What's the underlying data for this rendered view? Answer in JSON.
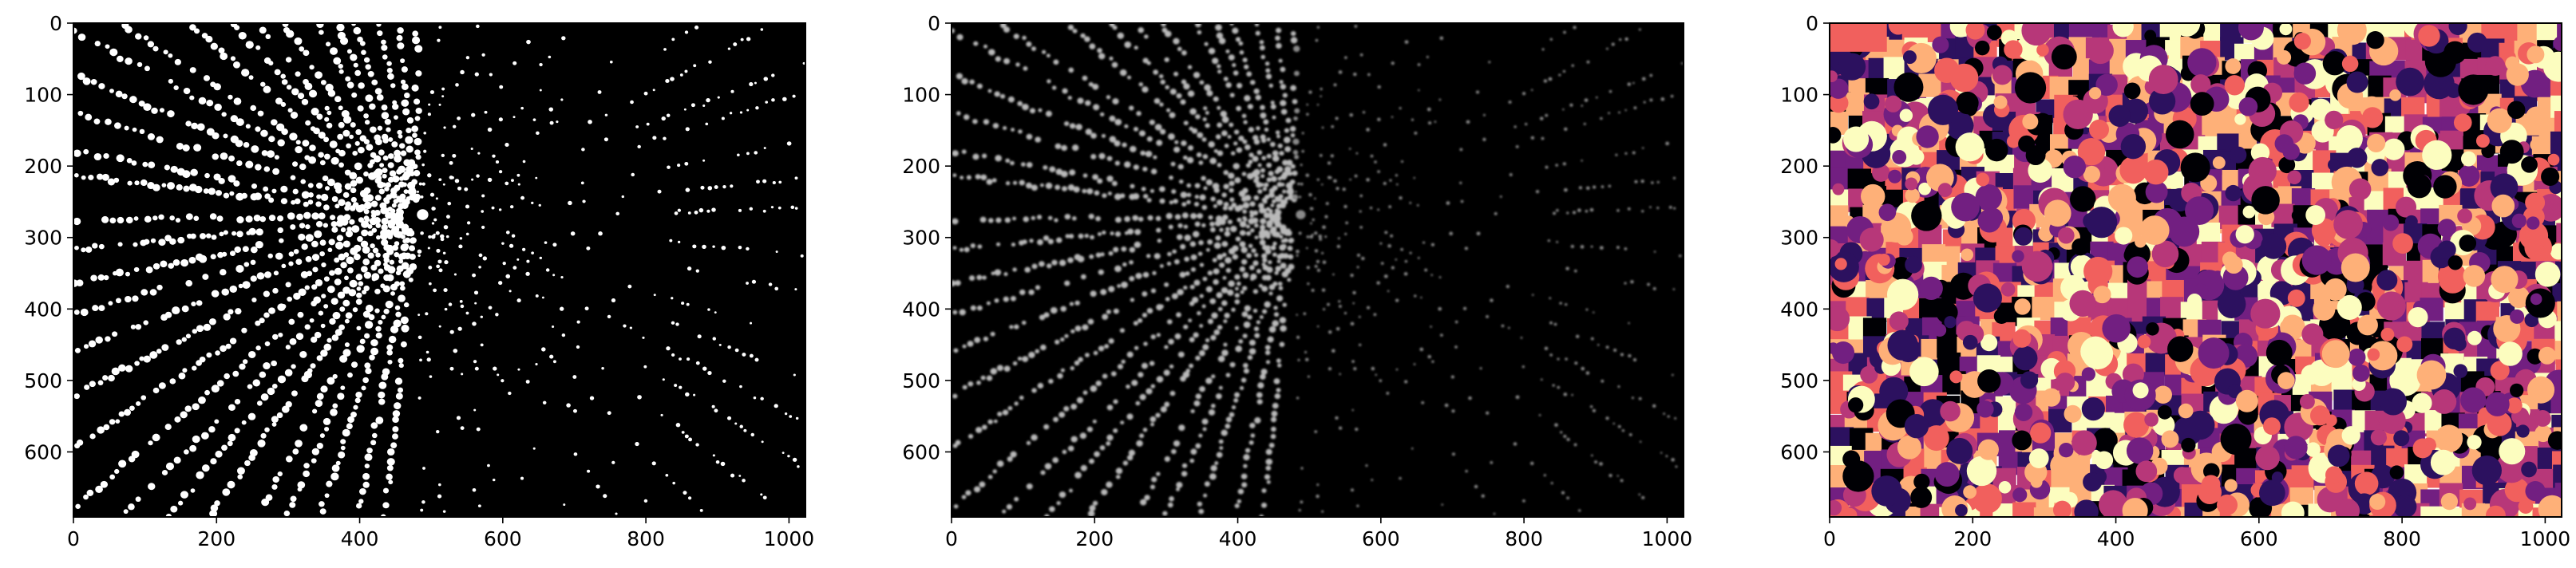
{
  "chart_data": [
    {
      "type": "heatmap",
      "image_kind": "binary-mask",
      "description_colormap": "gray",
      "xlim": [
        0,
        1023
      ],
      "ylim": [
        691,
        0
      ],
      "x_ticks": [
        0,
        200,
        400,
        600,
        800,
        1000
      ],
      "y_ticks": [
        0,
        100,
        200,
        300,
        400,
        500,
        600
      ],
      "title": "",
      "xlabel": "",
      "ylabel": ""
    },
    {
      "type": "heatmap",
      "image_kind": "grayscale-intensity",
      "description_colormap": "gray",
      "xlim": [
        0,
        1023
      ],
      "ylim": [
        691,
        0
      ],
      "x_ticks": [
        0,
        200,
        400,
        600,
        800,
        1000
      ],
      "y_ticks": [
        0,
        100,
        200,
        300,
        400,
        500,
        600
      ],
      "title": "",
      "xlabel": "",
      "ylabel": ""
    },
    {
      "type": "heatmap",
      "image_kind": "label-segmentation",
      "description_colormap": "magma",
      "palette": [
        "#000004",
        "#2c115f",
        "#721f81",
        "#b73779",
        "#f1605d",
        "#feb078",
        "#fcfdbf"
      ],
      "xlim": [
        0,
        1023
      ],
      "ylim": [
        691,
        0
      ],
      "x_ticks": [
        0,
        200,
        400,
        600,
        800,
        1000
      ],
      "y_ticks": [
        0,
        100,
        200,
        300,
        400,
        500,
        600
      ],
      "title": "",
      "xlabel": "",
      "ylabel": ""
    }
  ]
}
